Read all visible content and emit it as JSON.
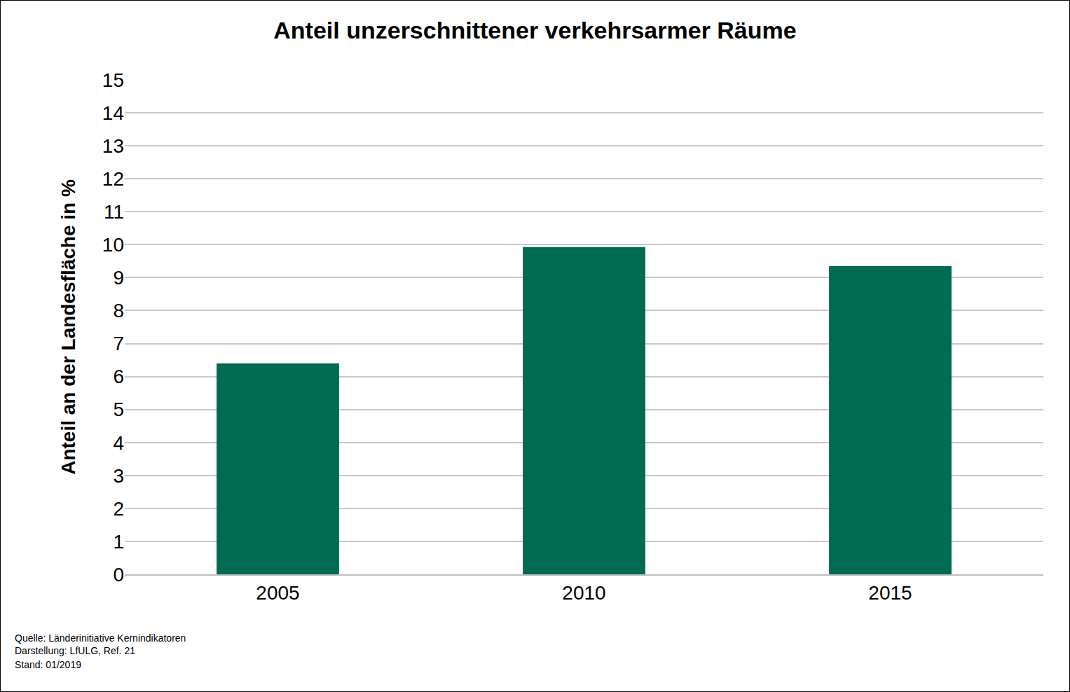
{
  "chart_data": {
    "type": "bar",
    "title": "Anteil unzerschnittener verkehrsarmer Räume",
    "y_label": "Anteil an der Landesfläche in %",
    "categories": [
      "2005",
      "2010",
      "2015"
    ],
    "values": [
      6.4,
      9.93,
      9.35
    ],
    "color": "#006a52",
    "ylim": [
      0,
      15
    ],
    "yticks": [
      0,
      1,
      2,
      3,
      4,
      5,
      6,
      7,
      8,
      9,
      10,
      11,
      12,
      13,
      14,
      15
    ],
    "grid": true,
    "annotations": [
      "Quelle: Länderinitiative Kernindikatoren",
      "Darstellung: LfULG, Ref. 21",
      "Stand: 01/2019"
    ]
  }
}
